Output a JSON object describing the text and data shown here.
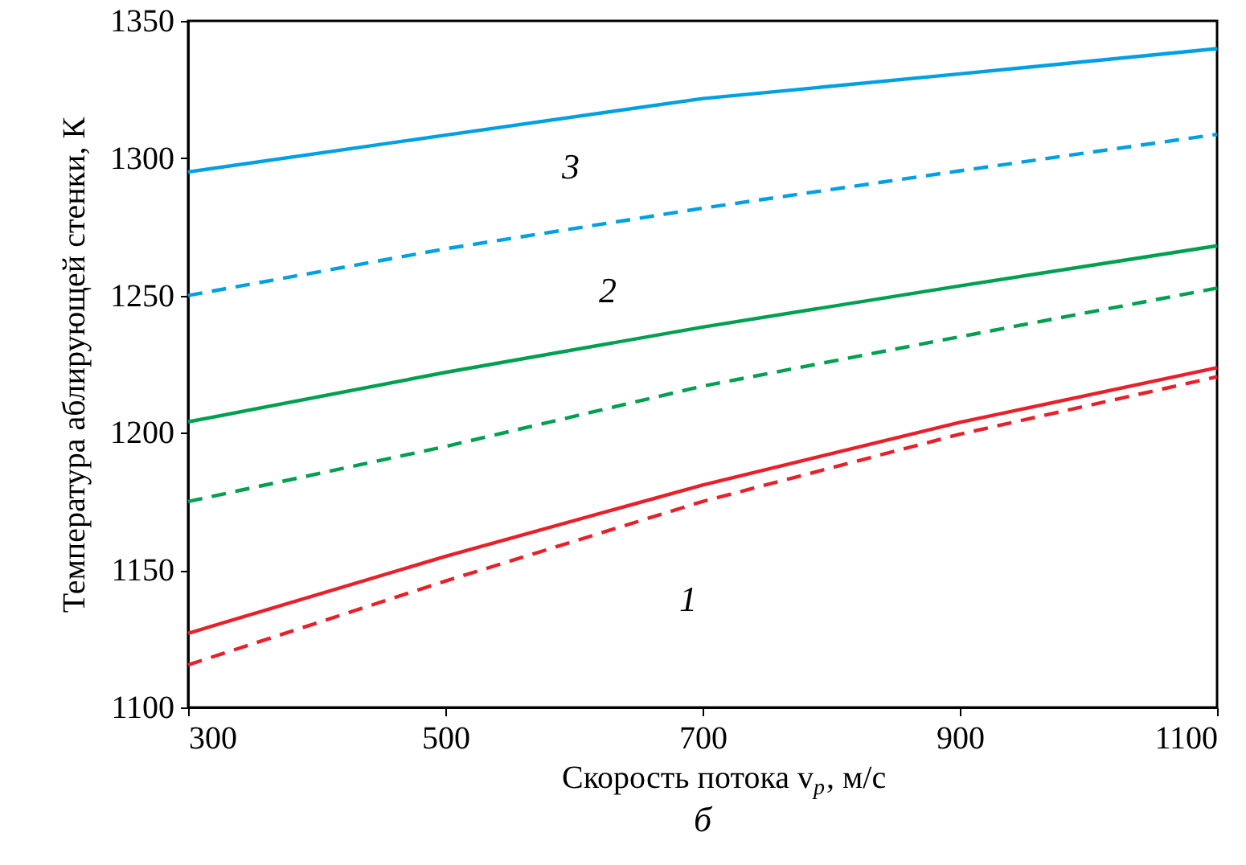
{
  "chart_data": {
    "type": "line",
    "xlabel": "Скорость потока v$_{p}$, м/с",
    "ylabel": "Температура аблирующей стенки, К",
    "x": [
      300,
      500,
      700,
      900,
      1100
    ],
    "series": [
      {
        "color": "#00a0e3",
        "line_style": "solid",
        "values": [
          1295,
          1308.4,
          1321.7,
          1330.7,
          1339.9
        ]
      },
      {
        "color": "#00a0e3",
        "line_style": "dashed",
        "values": [
          1250,
          1267,
          1281.8,
          1295.4,
          1308.7
        ]
      },
      {
        "color": "#00a050",
        "line_style": "solid",
        "values": [
          1204,
          1222,
          1238.5,
          1253.5,
          1268.1
        ]
      },
      {
        "color": "#00a050",
        "line_style": "dashed",
        "values": [
          1175,
          1195,
          1217,
          1235,
          1252.7
        ]
      },
      {
        "color": "#e8202a",
        "line_style": "solid",
        "values": [
          1127,
          1155,
          1181,
          1203.8,
          1223.7
        ]
      },
      {
        "color": "#e8202a",
        "line_style": "dashed",
        "values": [
          1115.5,
          1146,
          1175,
          1199.5,
          1220.4
        ]
      }
    ],
    "xlim": [
      300,
      1100
    ],
    "xticks": [
      300,
      500,
      700,
      900,
      1100
    ],
    "ylim": [
      1100,
      1350
    ],
    "yticks": [
      1100,
      1150,
      1200,
      1250,
      1300,
      1350
    ],
    "grid": false,
    "marker": "none",
    "annotations": [
      "3",
      "2",
      "1",
      "б"
    ]
  }
}
